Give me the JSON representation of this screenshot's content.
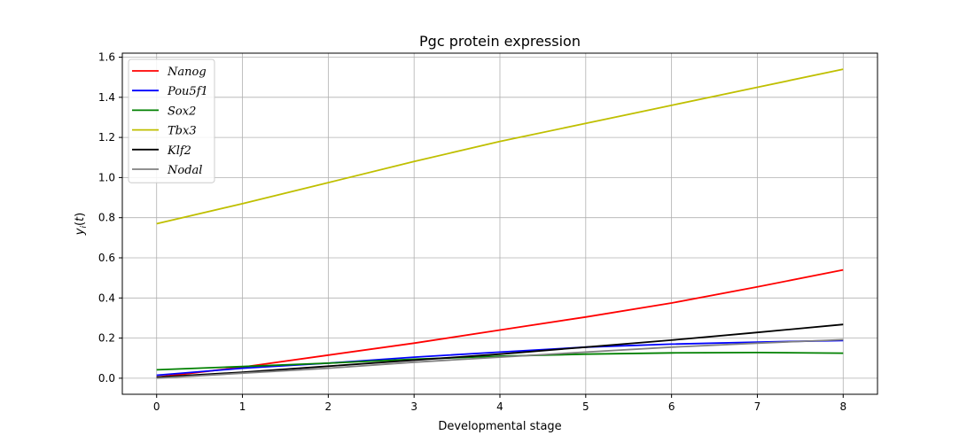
{
  "chart_data": {
    "type": "line",
    "title": "Pgc protein expression",
    "xlabel": "Developmental stage",
    "ylabel": "y_i(t)",
    "xlim": [
      -0.4,
      8.4
    ],
    "ylim": [
      -0.08,
      1.62
    ],
    "xticks": [
      0,
      1,
      2,
      3,
      4,
      5,
      6,
      7,
      8
    ],
    "yticks": [
      0.0,
      0.2,
      0.4,
      0.6,
      0.8,
      1.0,
      1.2,
      1.4,
      1.6
    ],
    "xtick_labels": [
      "0",
      "1",
      "2",
      "3",
      "4",
      "5",
      "6",
      "7",
      "8"
    ],
    "ytick_labels": [
      "0.0",
      "0.2",
      "0.4",
      "0.6",
      "0.8",
      "1.0",
      "1.2",
      "1.4",
      "1.6"
    ],
    "grid": true,
    "legend_position": "top-left",
    "x": [
      0,
      1,
      2,
      3,
      4,
      5,
      6,
      7,
      8
    ],
    "series": [
      {
        "name": "Nanog",
        "color": "#ff0000",
        "values": [
          0.005,
          0.055,
          0.115,
          0.175,
          0.24,
          0.305,
          0.375,
          0.455,
          0.54
        ]
      },
      {
        "name": "Pou5f1",
        "color": "#0000ff",
        "values": [
          0.015,
          0.05,
          0.075,
          0.105,
          0.13,
          0.155,
          0.17,
          0.18,
          0.188
        ]
      },
      {
        "name": "Sox2",
        "color": "#008000",
        "values": [
          0.042,
          0.058,
          0.075,
          0.095,
          0.11,
          0.12,
          0.126,
          0.128,
          0.125
        ]
      },
      {
        "name": "Tbx3",
        "color": "#bfbf00",
        "values": [
          0.77,
          0.87,
          0.975,
          1.08,
          1.18,
          1.27,
          1.36,
          1.45,
          1.54
        ]
      },
      {
        "name": "Klf2",
        "color": "#000000",
        "values": [
          0.005,
          0.03,
          0.06,
          0.09,
          0.12,
          0.155,
          0.19,
          0.228,
          0.268
        ]
      },
      {
        "name": "Nodal",
        "color": "#808080",
        "values": [
          0.0,
          0.025,
          0.05,
          0.08,
          0.105,
          0.13,
          0.155,
          0.175,
          0.192
        ]
      }
    ]
  }
}
